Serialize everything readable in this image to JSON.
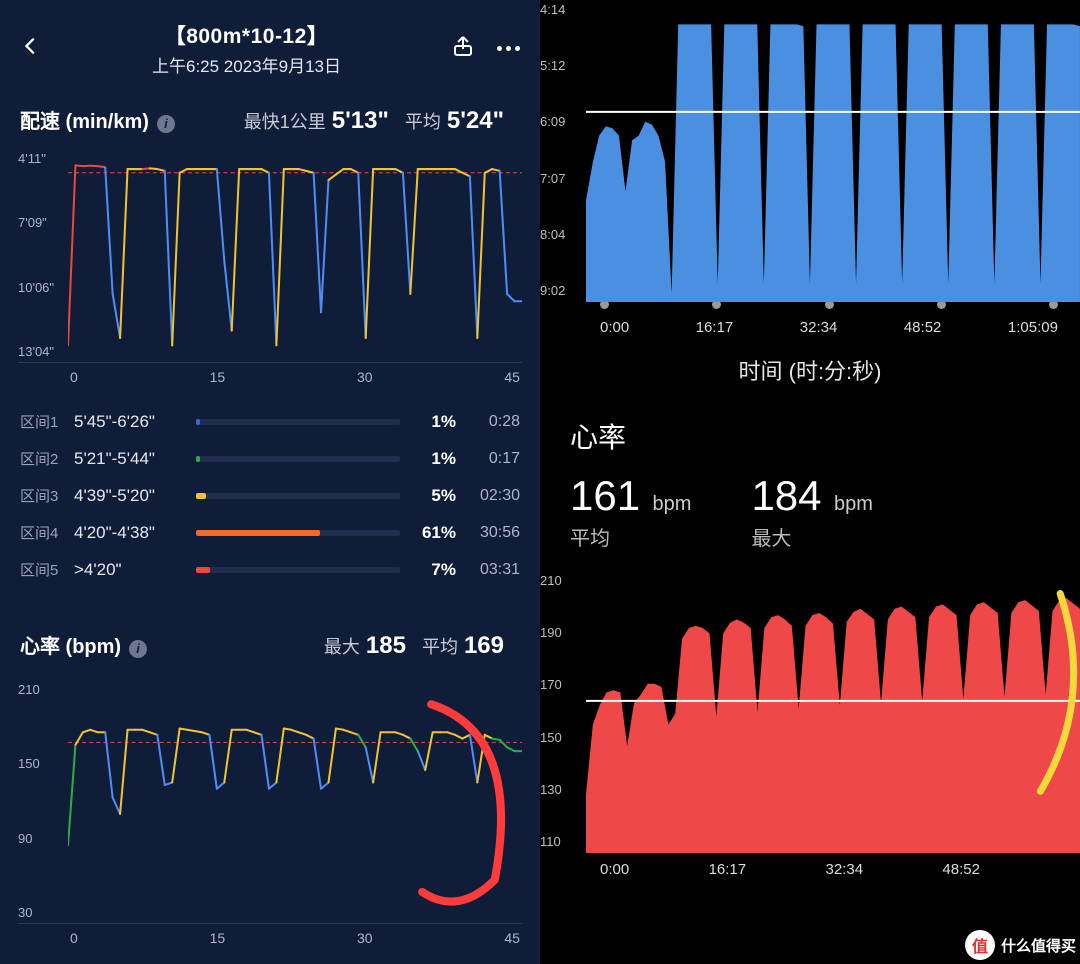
{
  "header": {
    "title": "【800m*10-12】",
    "subtitle": "上午6:25 2023年9月13日"
  },
  "pace": {
    "label": "配速 (min/km)",
    "fastest_label": "最快1公里",
    "fastest_value": "5'13\"",
    "avg_label": "平均",
    "avg_value": "5'24\"",
    "y_ticks": [
      "4'11\"",
      "7'09\"",
      "10'06\"",
      "13'04\""
    ],
    "x_ticks": [
      "0",
      "15",
      "30",
      "45"
    ],
    "y_range": [
      251,
      784
    ],
    "dash_y": 310,
    "colors": {
      "fast": "#e84a3c",
      "mid": "#f2c233",
      "slow": "#4f8df5",
      "dash": "#e84a3c",
      "grid": "#2a3654"
    },
    "series": [
      780,
      290,
      292,
      291,
      292,
      295,
      640,
      760,
      300,
      300,
      300,
      298,
      300,
      305,
      780,
      310,
      300,
      300,
      300,
      300,
      300,
      550,
      740,
      300,
      300,
      300,
      300,
      310,
      780,
      300,
      300,
      300,
      305,
      310,
      690,
      330,
      315,
      300,
      300,
      310,
      760,
      300,
      300,
      300,
      300,
      310,
      640,
      300,
      300,
      300,
      300,
      300,
      300,
      310,
      320,
      760,
      310,
      300,
      305,
      640,
      660,
      660
    ]
  },
  "zones": [
    {
      "label": "区间1",
      "range": "5'45\"-6'26\"",
      "pct": 1,
      "time": "0:28",
      "color": "#3a68d8"
    },
    {
      "label": "区间2",
      "range": "5'21\"-5'44\"",
      "pct": 1,
      "time": "0:17",
      "color": "#2faa4a"
    },
    {
      "label": "区间3",
      "range": "4'39\"-5'20\"",
      "pct": 5,
      "time": "02:30",
      "color": "#f2c233"
    },
    {
      "label": "区间4",
      "range": "4'20\"-4'38\"",
      "pct": 61,
      "time": "30:56",
      "color": "#ef6a2b"
    },
    {
      "label": "区间5",
      "range": ">4'20\"",
      "pct": 7,
      "time": "03:31",
      "color": "#e84a3c"
    }
  ],
  "hr": {
    "label": "心率 (bpm)",
    "max_label": "最大",
    "max_value": "185",
    "avg_label": "平均",
    "avg_value": "169",
    "y_ticks": [
      "210",
      "150",
      "90",
      "30"
    ],
    "x_ticks": [
      "0",
      "15",
      "30",
      "45"
    ],
    "y_range": [
      30,
      210
    ],
    "dash_y": 162,
    "colors": {
      "high": "#e84a3c",
      "mid": "#f2c233",
      "ok": "#2faa4a",
      "low": "#4f8df5",
      "dash": "#e84a3c"
    },
    "series": [
      80,
      160,
      170,
      172,
      170,
      170,
      118,
      105,
      172,
      172,
      172,
      170,
      168,
      128,
      130,
      173,
      172,
      171,
      170,
      168,
      125,
      130,
      172,
      172,
      172,
      170,
      168,
      125,
      130,
      173,
      172,
      170,
      168,
      165,
      125,
      130,
      173,
      172,
      170,
      168,
      158,
      130,
      170,
      170,
      170,
      168,
      165,
      155,
      140,
      170,
      170,
      170,
      168,
      165,
      168,
      130,
      168,
      165,
      164,
      158,
      155,
      155
    ],
    "annot_color": "#ff3b3b"
  },
  "right_top": {
    "y_ticks": [
      "4:14",
      "5:12",
      "6:09",
      "7:07",
      "8:04",
      "9:02"
    ],
    "x_ticks": [
      "0:00",
      "16:17",
      "32:34",
      "48:52",
      "1:05:09"
    ],
    "axis_label": "时间 (时:分:秒)",
    "color": "#4b8fe0",
    "avg_line": "#ffffff",
    "series": [
      110,
      150,
      180,
      190,
      188,
      180,
      120,
      175,
      180,
      195,
      192,
      180,
      152,
      10,
      300,
      300,
      300,
      300,
      300,
      300,
      20,
      300,
      300,
      300,
      300,
      300,
      300,
      20,
      300,
      300,
      300,
      300,
      300,
      298,
      20,
      300,
      300,
      300,
      300,
      300,
      300,
      20,
      300,
      300,
      300,
      300,
      300,
      300,
      20,
      300,
      300,
      300,
      300,
      300,
      300,
      20,
      300,
      300,
      300,
      300,
      300,
      300,
      20,
      300,
      300,
      300,
      300,
      300,
      300,
      20,
      300,
      300,
      300,
      300,
      300,
      298
    ]
  },
  "right_hr": {
    "section": "心率",
    "avg_value": "161",
    "avg_unit": "bpm",
    "avg_label": "平均",
    "max_value": "184",
    "max_unit": "bpm",
    "max_label": "最大",
    "y_ticks": [
      "210",
      "190",
      "170",
      "150",
      "130",
      "110"
    ],
    "x_ticks": [
      "0:00",
      "16:17",
      "32:34",
      "48:52"
    ],
    "color": "#ef4848",
    "avg_line": "#ffffff",
    "annot_color": "#f5d93a",
    "series": [
      55,
      120,
      138,
      150,
      152,
      150,
      100,
      140,
      148,
      158,
      158,
      155,
      120,
      130,
      200,
      210,
      212,
      210,
      205,
      128,
      205,
      215,
      218,
      215,
      210,
      132,
      210,
      220,
      222,
      218,
      212,
      135,
      212,
      222,
      224,
      220,
      214,
      138,
      216,
      225,
      228,
      223,
      218,
      140,
      218,
      228,
      230,
      225,
      220,
      142,
      220,
      230,
      232,
      227,
      222,
      144,
      222,
      232,
      234,
      229,
      224,
      146,
      224,
      234,
      236,
      231,
      226,
      148,
      226,
      236,
      238,
      233,
      228
    ]
  },
  "watermark": {
    "icon": "值",
    "text": "什么值得买"
  }
}
